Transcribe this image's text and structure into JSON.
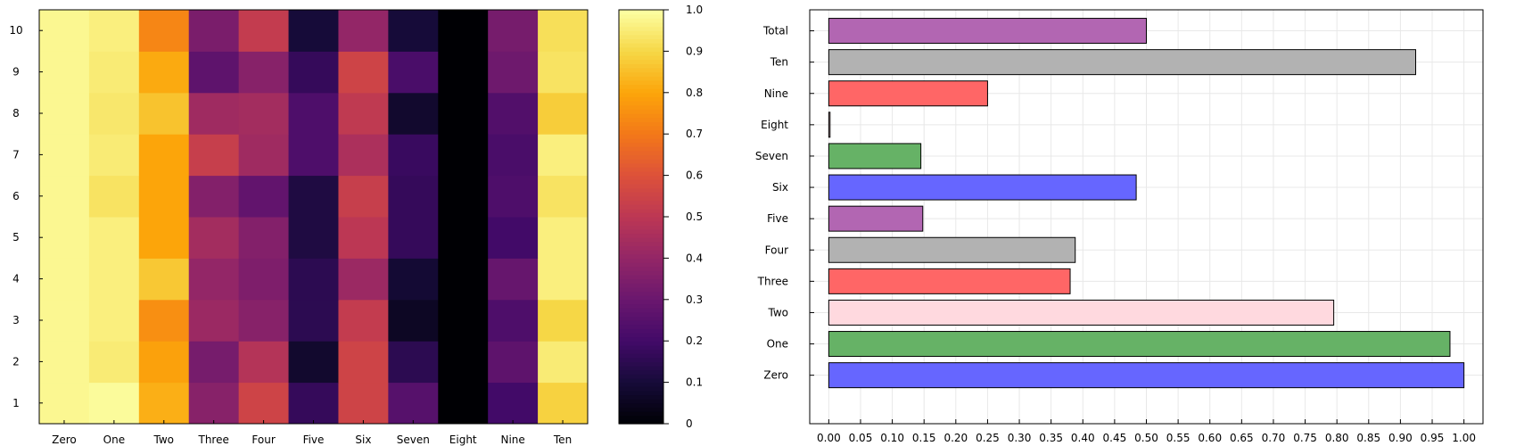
{
  "chart_data": [
    {
      "type": "heatmap",
      "title": "",
      "xlabel": "",
      "ylabel": "",
      "x_categories": [
        "Zero",
        "One",
        "Two",
        "Three",
        "Four",
        "Five",
        "Six",
        "Seven",
        "Eight",
        "Nine",
        "Ten"
      ],
      "y_categories": [
        "1",
        "2",
        "3",
        "4",
        "5",
        "6",
        "7",
        "8",
        "9",
        "10"
      ],
      "values_by_row": [
        [
          0.98,
          0.99,
          0.82,
          0.37,
          0.55,
          0.17,
          0.55,
          0.25,
          0.0,
          0.2,
          0.89
        ],
        [
          0.98,
          0.95,
          0.79,
          0.33,
          0.48,
          0.08,
          0.55,
          0.15,
          0.0,
          0.27,
          0.95
        ],
        [
          0.98,
          0.96,
          0.75,
          0.42,
          0.37,
          0.15,
          0.52,
          0.06,
          0.0,
          0.23,
          0.9
        ],
        [
          0.98,
          0.96,
          0.87,
          0.4,
          0.35,
          0.15,
          0.42,
          0.09,
          0.0,
          0.29,
          0.96
        ],
        [
          0.98,
          0.96,
          0.8,
          0.44,
          0.36,
          0.12,
          0.5,
          0.17,
          0.0,
          0.2,
          0.96
        ],
        [
          0.98,
          0.93,
          0.8,
          0.36,
          0.28,
          0.12,
          0.53,
          0.17,
          0.0,
          0.23,
          0.93
        ],
        [
          0.98,
          0.95,
          0.8,
          0.53,
          0.43,
          0.23,
          0.46,
          0.18,
          0.0,
          0.22,
          0.96
        ],
        [
          0.98,
          0.94,
          0.86,
          0.43,
          0.44,
          0.23,
          0.51,
          0.08,
          0.0,
          0.24,
          0.88
        ],
        [
          0.98,
          0.95,
          0.81,
          0.27,
          0.37,
          0.17,
          0.55,
          0.22,
          0.0,
          0.31,
          0.93
        ],
        [
          0.98,
          0.96,
          0.73,
          0.34,
          0.52,
          0.1,
          0.4,
          0.1,
          0.0,
          0.33,
          0.92
        ]
      ],
      "colormap": "inferno",
      "colorbar": {
        "range": [
          0,
          1
        ],
        "ticks": [
          "0",
          "0.1",
          "0.2",
          "0.3",
          "0.4",
          "0.5",
          "0.6",
          "0.7",
          "0.8",
          "0.9",
          "1.0"
        ]
      }
    },
    {
      "type": "bar",
      "orientation": "horizontal",
      "title": "",
      "xlabel": "",
      "ylabel": "",
      "categories": [
        "Zero",
        "One",
        "Two",
        "Three",
        "Four",
        "Five",
        "Six",
        "Seven",
        "Eight",
        "Nine",
        "Ten",
        "Total"
      ],
      "values": [
        1.0,
        0.978,
        0.795,
        0.38,
        0.388,
        0.148,
        0.484,
        0.145,
        0.002,
        0.25,
        0.924,
        0.5
      ],
      "bar_colors": [
        "#6666ff",
        "#66b266",
        "#ffd9df",
        "#ff6666",
        "#b2b2b2",
        "#b266b2",
        "#6666ff",
        "#66b266",
        "#ffd9df",
        "#ff6666",
        "#b2b2b2",
        "#b266b2"
      ],
      "xlim": [
        -0.03,
        1.03
      ],
      "xticks": [
        "0.00",
        "0.05",
        "0.10",
        "0.15",
        "0.20",
        "0.25",
        "0.30",
        "0.35",
        "0.40",
        "0.45",
        "0.50",
        "0.55",
        "0.60",
        "0.65",
        "0.70",
        "0.75",
        "0.80",
        "0.85",
        "0.90",
        "0.95",
        "1.00"
      ],
      "grid": true
    }
  ]
}
